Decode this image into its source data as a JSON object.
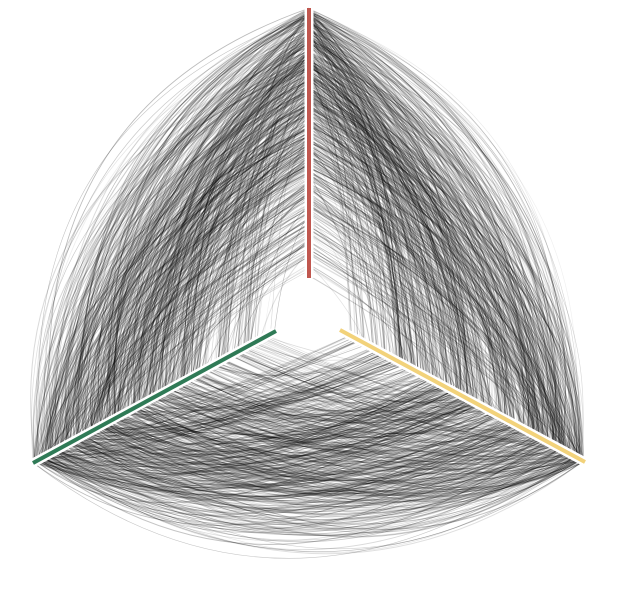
{
  "figure": {
    "kind": "hive-plot",
    "background_color": "#ffffff",
    "edge_color": "#000000"
  },
  "axes": [
    {
      "id": "axis-top",
      "color": "#c0574f"
    },
    {
      "id": "axis-right",
      "color": "#f2d27a"
    },
    {
      "id": "axis-left",
      "color": "#2f7a56"
    }
  ]
}
